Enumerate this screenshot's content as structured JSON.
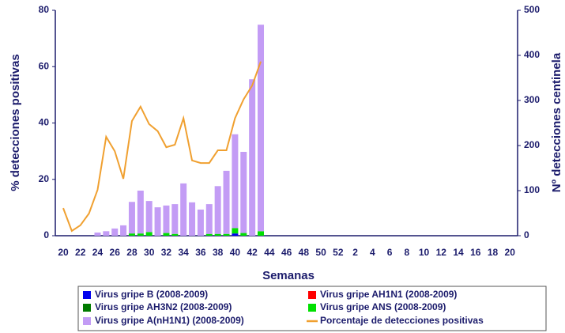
{
  "chart_data": {
    "type": "bar",
    "x_label": "Semanas",
    "y_label": "% detecciones positivas",
    "y2_label": "Nº detecciones centinela",
    "categories": [
      20,
      null,
      22,
      null,
      24,
      null,
      26,
      null,
      28,
      null,
      30,
      null,
      32,
      null,
      34,
      null,
      36,
      null,
      38,
      null,
      40,
      null,
      42,
      null,
      44,
      null,
      46,
      null,
      48,
      null,
      50,
      null,
      52,
      null,
      2,
      null,
      4,
      null,
      6,
      null,
      8,
      null,
      10,
      null,
      12,
      null,
      14,
      null,
      16,
      null,
      18,
      null,
      20
    ],
    "ylim": [
      0,
      80
    ],
    "yticks": [
      0,
      20,
      40,
      60,
      80
    ],
    "y2lim": [
      0,
      500
    ],
    "y2ticks": [
      0,
      100,
      200,
      300,
      400,
      500
    ],
    "stacked": true,
    "series": [
      {
        "name": "Virus gripe B (2008-2009)",
        "color": "#0000ee",
        "axis": "y2",
        "values": [
          0,
          0,
          0,
          0,
          0,
          0,
          0,
          0,
          0,
          0,
          0,
          0,
          0,
          0,
          0,
          0,
          0,
          0,
          0,
          0,
          5,
          0,
          0,
          0,
          null,
          null,
          null,
          null,
          null,
          null,
          null,
          null,
          null,
          null,
          null,
          null,
          null,
          null,
          null,
          null,
          null,
          null,
          null,
          null,
          null,
          null,
          null,
          null,
          null,
          null,
          null,
          null,
          null
        ]
      },
      {
        "name": "Virus gripe AH1N1 (2008-2009)",
        "color": "#ff0000",
        "axis": "y2",
        "values": [
          0,
          0,
          0,
          0,
          0,
          0,
          0,
          0,
          0,
          0,
          0,
          0,
          0,
          0,
          0,
          0,
          0,
          0,
          0,
          0,
          0,
          0,
          0,
          0,
          null,
          null,
          null,
          null,
          null,
          null,
          null,
          null,
          null,
          null,
          null,
          null,
          null,
          null,
          null,
          null,
          null,
          null,
          null,
          null,
          null,
          null,
          null,
          null,
          null,
          null,
          null,
          null,
          null
        ]
      },
      {
        "name": "Virus gripe AH3N2 (2008-2009)",
        "color": "#007a00",
        "axis": "y2",
        "values": [
          0,
          0,
          0,
          0,
          0,
          0,
          0,
          0,
          0,
          0,
          0,
          0,
          0,
          0,
          0,
          0,
          0,
          0,
          0,
          0,
          0,
          0,
          0,
          0,
          null,
          null,
          null,
          null,
          null,
          null,
          null,
          null,
          null,
          null,
          null,
          null,
          null,
          null,
          null,
          null,
          null,
          null,
          null,
          null,
          null,
          null,
          null,
          null,
          null,
          null,
          null,
          null,
          null
        ]
      },
      {
        "name": "Virus gripe ANS (2008-2009)",
        "color": "#00e000",
        "axis": "y2",
        "values": [
          0,
          0,
          0,
          0,
          0,
          0,
          0,
          0,
          5,
          5,
          8,
          0,
          6,
          4,
          0,
          0,
          0,
          4,
          4,
          4,
          12,
          6,
          0,
          10,
          null,
          null,
          null,
          null,
          null,
          null,
          null,
          null,
          null,
          null,
          null,
          null,
          null,
          null,
          null,
          null,
          null,
          null,
          null,
          null,
          null,
          null,
          null,
          null,
          null,
          null,
          null,
          null,
          null
        ]
      },
      {
        "name": "Virus gripe A(nH1N1) (2008-2009)",
        "color": "#c39cf5",
        "axis": "y2",
        "values": [
          0,
          0,
          0,
          0,
          7,
          10,
          16,
          23,
          70,
          95,
          69,
          63,
          61,
          66,
          116,
          74,
          58,
          66,
          106,
          140,
          208,
          180,
          347,
          458,
          null,
          null,
          null,
          null,
          null,
          null,
          null,
          null,
          null,
          null,
          null,
          null,
          null,
          null,
          null,
          null,
          null,
          null,
          null,
          null,
          null,
          null,
          null,
          null,
          null,
          null,
          null,
          null,
          null
        ]
      },
      {
        "name": "Porcentaje de detecciones positivas",
        "color": "#f0a030",
        "type": "line",
        "values": [
          9.8,
          1.7,
          3.7,
          7.9,
          16.3,
          35.1,
          30.0,
          20.2,
          40.7,
          45.8,
          39.6,
          37.1,
          31.4,
          32.3,
          41.7,
          26.7,
          25.8,
          25.8,
          30.3,
          30.3,
          41.7,
          48.4,
          53.3,
          61.8,
          null,
          null,
          null,
          null,
          null,
          null,
          null,
          null,
          null,
          null,
          null,
          null,
          null,
          null,
          null,
          null,
          null,
          null,
          null,
          null,
          null,
          null,
          null,
          null,
          null,
          null,
          null,
          null,
          null
        ]
      }
    ]
  }
}
